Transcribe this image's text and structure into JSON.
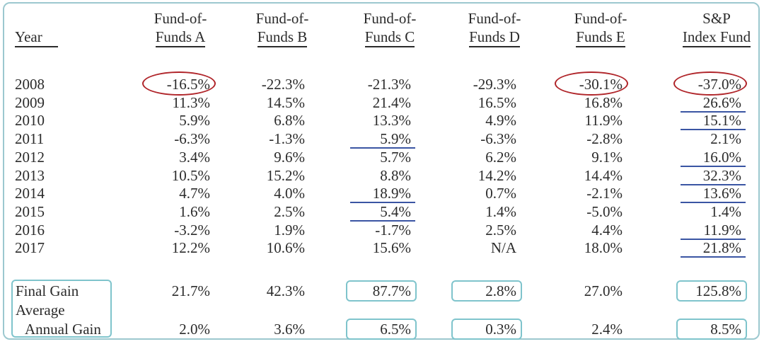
{
  "table": {
    "year_header": "Year",
    "funds": [
      {
        "line1": "Fund-of-",
        "line2": "Funds A"
      },
      {
        "line1": "Fund-of-",
        "line2": "Funds B"
      },
      {
        "line1": "Fund-of-",
        "line2": "Funds C"
      },
      {
        "line1": "Fund-of-",
        "line2": "Funds D"
      },
      {
        "line1": "Fund-of-",
        "line2": "Funds E"
      },
      {
        "line1": "S&P",
        "line2": "Index Fund"
      }
    ],
    "rows": [
      {
        "year": "2008",
        "values": [
          "-16.5%",
          "-22.3%",
          "-21.3%",
          "-29.3%",
          "-30.1%",
          "-37.0%"
        ]
      },
      {
        "year": "2009",
        "values": [
          "11.3%",
          "14.5%",
          "21.4%",
          "16.5%",
          "16.8%",
          "26.6%"
        ]
      },
      {
        "year": "2010",
        "values": [
          "5.9%",
          "6.8%",
          "13.3%",
          "4.9%",
          "11.9%",
          "15.1%"
        ]
      },
      {
        "year": "2011",
        "values": [
          "-6.3%",
          "-1.3%",
          "5.9%",
          "-6.3%",
          "-2.8%",
          "2.1%"
        ]
      },
      {
        "year": "2012",
        "values": [
          "3.4%",
          "9.6%",
          "5.7%",
          "6.2%",
          "9.1%",
          "16.0%"
        ]
      },
      {
        "year": "2013",
        "values": [
          "10.5%",
          "15.2%",
          "8.8%",
          "14.2%",
          "14.4%",
          "32.3%"
        ]
      },
      {
        "year": "2014",
        "values": [
          "4.7%",
          "4.0%",
          "18.9%",
          "0.7%",
          "-2.1%",
          "13.6%"
        ]
      },
      {
        "year": "2015",
        "values": [
          "1.6%",
          "2.5%",
          "5.4%",
          "1.4%",
          "-5.0%",
          "1.4%"
        ]
      },
      {
        "year": "2016",
        "values": [
          "-3.2%",
          "1.9%",
          "-1.7%",
          "2.5%",
          "4.4%",
          "11.9%"
        ]
      },
      {
        "year": "2017",
        "values": [
          "12.2%",
          "10.6%",
          "15.6%",
          "N/A",
          "18.0%",
          "21.8%"
        ]
      }
    ],
    "final_gain": {
      "label": "Final Gain",
      "values": [
        "21.7%",
        "42.3%",
        "87.7%",
        "2.8%",
        "27.0%",
        "125.8%"
      ]
    },
    "average_annual_gain": {
      "label_line1": "Average",
      "label_line2": "Annual Gain",
      "values": [
        "2.0%",
        "3.6%",
        "6.5%",
        "0.3%",
        "2.4%",
        "8.5%"
      ]
    }
  },
  "annotations": {
    "circled": [
      [
        0,
        0
      ],
      [
        0,
        4
      ],
      [
        0,
        5
      ]
    ],
    "underlined": [
      [
        3,
        2
      ],
      [
        6,
        2
      ],
      [
        7,
        2
      ],
      [
        1,
        5
      ],
      [
        2,
        5
      ],
      [
        4,
        5
      ],
      [
        5,
        5
      ],
      [
        6,
        5
      ],
      [
        8,
        5
      ],
      [
        9,
        5
      ]
    ],
    "boxed_columns": [
      2,
      3,
      5
    ],
    "circle_color": "#b0252a",
    "underline_color": "#3a55a3",
    "box_color": "#7fc4cc"
  }
}
